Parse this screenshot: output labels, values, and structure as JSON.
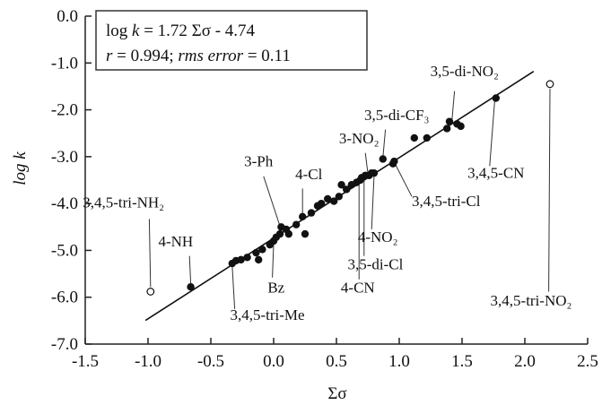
{
  "chart_data": {
    "type": "scatter",
    "xlabel": "Σσ",
    "ylabel": "log k",
    "xlim": [
      -1.5,
      2.5
    ],
    "ylim": [
      -7.0,
      0.0
    ],
    "xticks": [
      -1.5,
      -1.0,
      -0.5,
      0.0,
      0.5,
      1.0,
      1.5,
      2.0,
      2.5
    ],
    "xtick_labels": [
      "-1.5",
      "-1.0",
      "-0.5",
      "0.0",
      "0.5",
      "1.0",
      "1.5",
      "2.0",
      "2.5"
    ],
    "yticks": [
      0.0,
      -1.0,
      -2.0,
      -3.0,
      -4.0,
      -5.0,
      -6.0,
      -7.0
    ],
    "ytick_labels": [
      "0.0",
      "-1.0",
      "-2.0",
      "-3.0",
      "-4.0",
      "-5.0",
      "-6.0",
      "-7.0"
    ],
    "grid": false,
    "equation_line1": "log k = 1.72 Σσ - 4.74",
    "equation_line2": "r = 0.994; rms error = 0.11",
    "fit": {
      "slope": 1.72,
      "intercept": -4.74,
      "x_range": [
        -1.02,
        2.07
      ]
    },
    "series": [
      {
        "marker": "filled",
        "points": [
          [
            -0.66,
            -5.78
          ],
          [
            -0.33,
            -5.28
          ],
          [
            -0.3,
            -5.22
          ],
          [
            -0.26,
            -5.2
          ],
          [
            -0.21,
            -5.15
          ],
          [
            -0.14,
            -5.05
          ],
          [
            -0.12,
            -5.2
          ],
          [
            -0.09,
            -4.98
          ],
          [
            -0.03,
            -4.88
          ],
          [
            0.0,
            -4.8
          ],
          [
            0.02,
            -4.72
          ],
          [
            0.05,
            -4.65
          ],
          [
            0.06,
            -4.5
          ],
          [
            0.1,
            -4.55
          ],
          [
            0.12,
            -4.65
          ],
          [
            0.18,
            -4.45
          ],
          [
            0.23,
            -4.28
          ],
          [
            0.25,
            -4.65
          ],
          [
            0.3,
            -4.2
          ],
          [
            0.35,
            -4.05
          ],
          [
            0.38,
            -4.0
          ],
          [
            0.43,
            -3.9
          ],
          [
            0.48,
            -3.95
          ],
          [
            0.52,
            -3.85
          ],
          [
            0.54,
            -3.6
          ],
          [
            0.58,
            -3.7
          ],
          [
            0.62,
            -3.6
          ],
          [
            0.66,
            -3.55
          ],
          [
            0.69,
            -3.5
          ],
          [
            0.7,
            -3.45
          ],
          [
            0.73,
            -3.4
          ],
          [
            0.76,
            -3.4
          ],
          [
            0.78,
            -3.35
          ],
          [
            0.8,
            -3.35
          ],
          [
            0.87,
            -3.05
          ],
          [
            0.95,
            -3.15
          ],
          [
            0.96,
            -3.1
          ],
          [
            1.12,
            -2.6
          ],
          [
            1.22,
            -2.6
          ],
          [
            1.38,
            -2.4
          ],
          [
            1.4,
            -2.25
          ],
          [
            1.46,
            -2.3
          ],
          [
            1.49,
            -2.35
          ],
          [
            1.77,
            -1.75
          ]
        ]
      },
      {
        "marker": "open",
        "points": [
          [
            -0.98,
            -5.88
          ],
          [
            2.2,
            -1.45
          ]
        ]
      }
    ],
    "annotations": [
      {
        "text": "3,5-di-NO₂",
        "x": 1.52,
        "y": -1.28,
        "anchor": "middle",
        "line": [
          [
            1.44,
            -1.6
          ],
          [
            1.42,
            -2.22
          ]
        ]
      },
      {
        "text": "3,5-di-CF₃",
        "x": 0.98,
        "y": -2.22,
        "anchor": "middle",
        "line": [
          [
            0.89,
            -2.42
          ],
          [
            0.87,
            -3.02
          ]
        ]
      },
      {
        "text": "3-NO₂",
        "x": 0.68,
        "y": -2.72,
        "anchor": "middle",
        "line": [
          [
            0.73,
            -2.92
          ],
          [
            0.75,
            -3.35
          ]
        ]
      },
      {
        "text": "3-Ph",
        "x": -0.12,
        "y": -3.2,
        "anchor": "middle",
        "line": [
          [
            -0.08,
            -3.42
          ],
          [
            0.05,
            -4.48
          ]
        ]
      },
      {
        "text": "4-Cl",
        "x": 0.28,
        "y": -3.48,
        "anchor": "middle",
        "line": [
          [
            0.23,
            -3.68
          ],
          [
            0.23,
            -4.25
          ]
        ]
      },
      {
        "text": "3,4,5-CN",
        "x": 1.77,
        "y": -3.45,
        "anchor": "middle",
        "line": [
          [
            1.72,
            -3.2
          ],
          [
            1.76,
            -1.8
          ]
        ]
      },
      {
        "text": "3,4,5-tri-Cl",
        "x": 1.1,
        "y": -4.05,
        "anchor": "start",
        "line": [
          [
            1.1,
            -3.85
          ],
          [
            0.97,
            -3.17
          ]
        ]
      },
      {
        "text": "3,4,5-tri-NH₂",
        "x": -1.52,
        "y": -4.08,
        "anchor": "start",
        "line": [
          [
            -0.99,
            -4.33
          ],
          [
            -0.98,
            -5.78
          ]
        ]
      },
      {
        "text": "4-NO₂",
        "x": 0.83,
        "y": -4.82,
        "anchor": "middle",
        "line": [
          [
            0.78,
            -4.55
          ],
          [
            0.8,
            -3.38
          ]
        ]
      },
      {
        "text": "4-NH",
        "x": -0.78,
        "y": -4.92,
        "anchor": "middle",
        "line": [
          [
            -0.67,
            -5.12
          ],
          [
            -0.66,
            -5.72
          ]
        ]
      },
      {
        "text": "3,5-di-Cl",
        "x": 0.81,
        "y": -5.4,
        "anchor": "middle",
        "line": [
          [
            0.72,
            -5.12
          ],
          [
            0.72,
            -3.42
          ]
        ]
      },
      {
        "text": "Bz",
        "x": 0.02,
        "y": -5.9,
        "anchor": "middle",
        "line": [
          [
            -0.01,
            -5.58
          ],
          [
            0.0,
            -4.85
          ]
        ]
      },
      {
        "text": "4-CN",
        "x": 0.67,
        "y": -5.9,
        "anchor": "middle",
        "line": [
          [
            0.68,
            -5.62
          ],
          [
            0.68,
            -3.5
          ]
        ]
      },
      {
        "text": "3,4,5-tri-Me",
        "x": -0.05,
        "y": -6.48,
        "anchor": "middle",
        "line": [
          [
            -0.31,
            -6.25
          ],
          [
            -0.33,
            -5.32
          ]
        ]
      },
      {
        "text": "3,4,5-tri-NO₂",
        "x": 2.05,
        "y": -6.18,
        "anchor": "middle",
        "line": [
          [
            2.19,
            -5.88
          ],
          [
            2.2,
            -1.55
          ]
        ]
      }
    ]
  }
}
